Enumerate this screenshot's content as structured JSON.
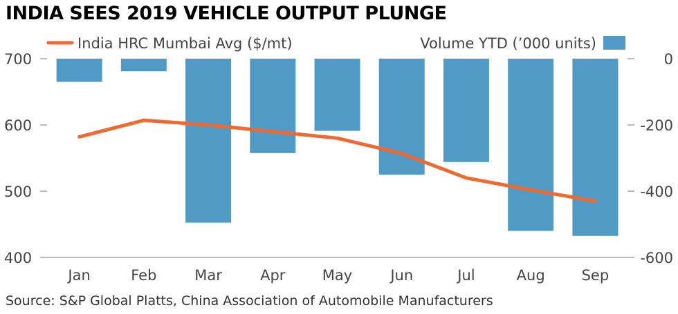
{
  "title": "INDIA SEES 2019 VEHICLE OUTPUT PLUNGE",
  "source": "Source: S&P Global Platts, China Association of Automobile Manufacturers",
  "colors": {
    "line": "#ee6a32",
    "bar": "#4f9bc5",
    "axis": "#777777",
    "grid": "#cccccc"
  },
  "chart_data": {
    "type": "bar+line",
    "categories": [
      "Jan",
      "Feb",
      "Mar",
      "Apr",
      "May",
      "Jun",
      "Jul",
      "Aug",
      "Sep"
    ],
    "series": [
      {
        "name": "India HRC Mumbai Avg ($/mt)",
        "type": "line",
        "axis": "left",
        "values": [
          582,
          607,
          600,
          590,
          580,
          557,
          520,
          502,
          485
        ]
      },
      {
        "name": "Volume YTD ('000 units)",
        "type": "bar",
        "axis": "right",
        "values": [
          -70,
          -38,
          -495,
          -285,
          -218,
          -350,
          -312,
          -520,
          -535
        ]
      }
    ],
    "left_axis": {
      "ylim": [
        400,
        700
      ],
      "ticks": [
        "400",
        "500",
        "600",
        "700"
      ]
    },
    "right_axis": {
      "ylim": [
        -600,
        0
      ],
      "ticks": [
        "-600",
        "-400",
        "-200",
        "0"
      ]
    },
    "legend": {
      "line_label": "India HRC Mumbai Avg ($/mt)",
      "bar_label": "Volume YTD (’000 units)",
      "placement": "top"
    }
  }
}
